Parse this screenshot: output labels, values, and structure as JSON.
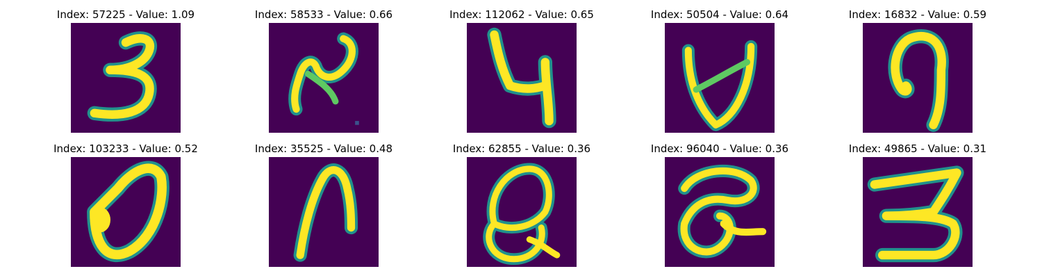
{
  "colors": {
    "background": "#440154",
    "edge": "#21918c",
    "mid": "#5ec962",
    "stroke": "#fde725"
  },
  "panels": [
    {
      "title": "Index: 57225 - Value: 1.09",
      "depicts": "3"
    },
    {
      "title": "Index: 58533 - Value: 0.66",
      "depicts": "2"
    },
    {
      "title": "Index: 112062 - Value: 0.65",
      "depicts": "4"
    },
    {
      "title": "Index: 50504 - Value: 0.64",
      "depicts": "4"
    },
    {
      "title": "Index: 16832 - Value: 0.59",
      "depicts": "9"
    },
    {
      "title": "Index: 103233 - Value: 0.52",
      "depicts": "0"
    },
    {
      "title": "Index: 35525 - Value: 0.48",
      "depicts": "n"
    },
    {
      "title": "Index: 62855 - Value: 0.36",
      "depicts": "a"
    },
    {
      "title": "Index: 96040 - Value: 0.36",
      "depicts": "a"
    },
    {
      "title": "Index: 49865 - Value: 0.31",
      "depicts": "3"
    }
  ]
}
